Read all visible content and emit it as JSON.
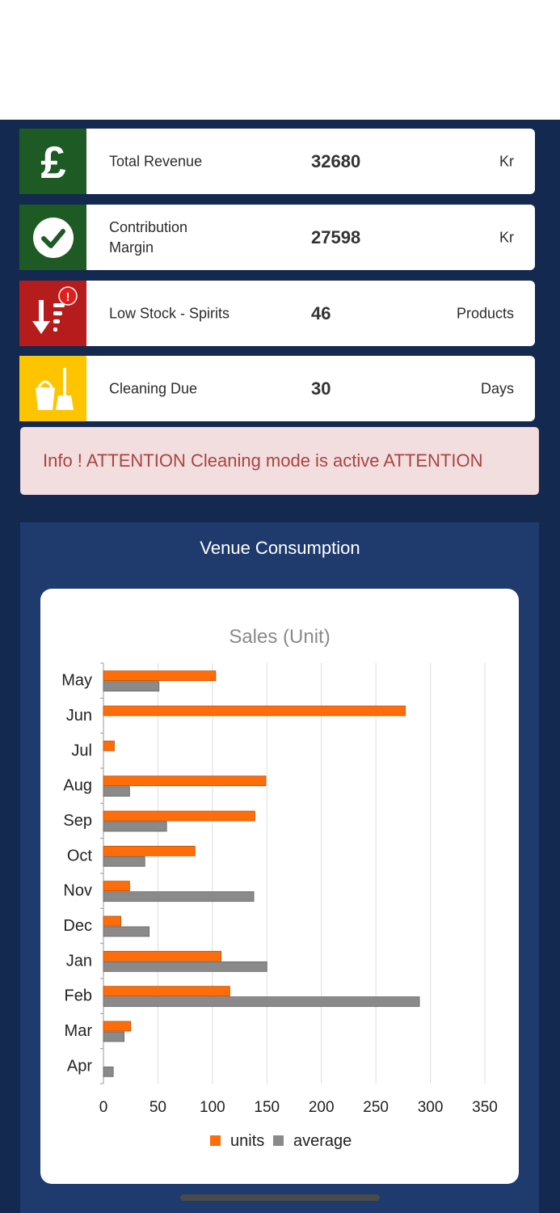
{
  "stats": [
    {
      "label": "Total Revenue",
      "value": "32680",
      "unit": "Kr",
      "icon": "pound-icon",
      "color": "#1e5a24"
    },
    {
      "label": "Contribution Margin",
      "value": "27598",
      "unit": "Kr",
      "icon": "check-circle-icon",
      "color": "#1e5a24"
    },
    {
      "label": "Low Stock - Spirits",
      "value": "46",
      "unit": "Products",
      "icon": "low-stock-alert-icon",
      "color": "#b71c1c"
    },
    {
      "label": "Cleaning Due",
      "value": "30",
      "unit": "Days",
      "icon": "cleaning-bucket-icon",
      "color": "#ffc400"
    }
  ],
  "stock_badge": "!",
  "alert": {
    "text": "Info ! ATTENTION Cleaning mode is active ATTENTION"
  },
  "panel": {
    "title": "Venue Consumption"
  },
  "chart_data": {
    "type": "bar",
    "orientation": "horizontal",
    "title": "Sales (Unit)",
    "categories": [
      "May",
      "Jun",
      "Jul",
      "Aug",
      "Sep",
      "Oct",
      "Nov",
      "Dec",
      "Jan",
      "Feb",
      "Mar",
      "Apr"
    ],
    "series": [
      {
        "name": "units",
        "color": "#ff6d0a",
        "values": [
          103,
          277,
          10,
          149,
          139,
          84,
          24,
          16,
          108,
          116,
          25,
          0
        ]
      },
      {
        "name": "average",
        "color": "#8a8a8a",
        "values": [
          51,
          0,
          0,
          24,
          58,
          38,
          138,
          42,
          150,
          290,
          19,
          9
        ]
      }
    ],
    "xlim": [
      0,
      350
    ],
    "xticks": [
      0,
      50,
      100,
      150,
      200,
      250,
      300,
      350
    ],
    "grid": true,
    "legend": "bottom"
  }
}
